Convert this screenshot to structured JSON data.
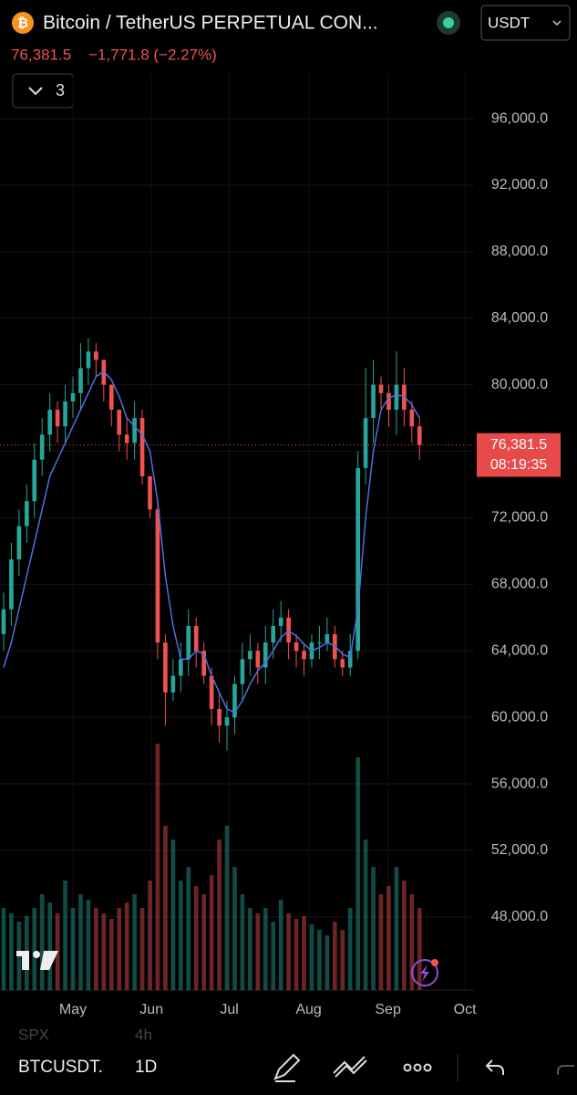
{
  "header": {
    "title": "Bitcoin / TetherUS PERPETUAL CON...",
    "currency": "USDT",
    "price": "76,381.5",
    "change": "−1,771.8 (−2.27%)",
    "indicators": "3"
  },
  "chart_data": {
    "type": "candlestick",
    "open": [
      65000,
      66500,
      69500,
      71500,
      73000,
      75500,
      77000,
      78500,
      77500,
      79000,
      79500,
      81000,
      82000,
      81500,
      80000,
      78500,
      77000,
      76500,
      78000,
      74500,
      72500,
      64500,
      61500,
      62500,
      63500,
      65500,
      64000,
      62500,
      60500,
      59500,
      60000,
      62000,
      63500,
      64000,
      63000,
      64500,
      65500,
      66000,
      64500,
      64000,
      63500,
      64500,
      64500,
      65000,
      63500,
      63000,
      64000,
      75000,
      78000,
      80000,
      79500,
      78500,
      80000,
      78500,
      77500
    ],
    "high": [
      67500,
      70500,
      72500,
      74000,
      76500,
      78000,
      79500,
      79000,
      80000,
      80500,
      82500,
      82800,
      82500,
      81500,
      80000,
      78500,
      78000,
      79000,
      78500,
      74000,
      73000,
      65000,
      63500,
      64500,
      66500,
      66000,
      64500,
      63000,
      61500,
      61000,
      62500,
      64500,
      65000,
      64500,
      65500,
      66500,
      67000,
      66500,
      65000,
      64500,
      65000,
      65500,
      66000,
      65500,
      64000,
      65000,
      76000,
      81000,
      81500,
      80500,
      80000,
      82000,
      81000,
      79000,
      78000
    ],
    "low": [
      64000,
      65500,
      68500,
      70500,
      72000,
      74500,
      76000,
      76500,
      76500,
      78000,
      78500,
      80000,
      80500,
      79000,
      77500,
      76000,
      75500,
      75500,
      74000,
      72000,
      63500,
      59500,
      61000,
      61500,
      62500,
      63000,
      62000,
      59500,
      58500,
      58000,
      59000,
      61000,
      62500,
      62000,
      62000,
      63500,
      64500,
      63500,
      63000,
      62500,
      63000,
      63500,
      64000,
      63000,
      62500,
      62500,
      63500,
      74000,
      76500,
      78500,
      77500,
      77000,
      77500,
      76500,
      75500
    ],
    "close": [
      66500,
      69500,
      71500,
      73000,
      75500,
      77000,
      78500,
      77500,
      79000,
      79500,
      81000,
      82000,
      81500,
      80000,
      78500,
      77000,
      76500,
      78000,
      74500,
      72500,
      64500,
      61500,
      62500,
      63500,
      65500,
      64000,
      62500,
      60500,
      59500,
      60000,
      62000,
      63500,
      64000,
      63000,
      64500,
      65500,
      66000,
      64500,
      64000,
      63500,
      64500,
      64500,
      65000,
      63500,
      63000,
      64000,
      75000,
      78000,
      80000,
      79500,
      78500,
      80000,
      78500,
      77500,
      76381.5
    ],
    "ma": [
      63000,
      64500,
      66500,
      68500,
      70500,
      72500,
      74500,
      75500,
      76500,
      77500,
      78500,
      79500,
      80500,
      80800,
      80300,
      79300,
      78000,
      77500,
      77000,
      76000,
      73000,
      68500,
      65500,
      63500,
      63500,
      64000,
      63800,
      62500,
      61500,
      60500,
      60300,
      61000,
      62000,
      62800,
      63300,
      64000,
      64800,
      65200,
      64900,
      64400,
      64000,
      64200,
      64500,
      64300,
      63800,
      63600,
      66500,
      72000,
      76000,
      78500,
      79200,
      79400,
      79300,
      78800,
      78000
    ],
    "volume": [
      30,
      28,
      25,
      27,
      30,
      35,
      32,
      28,
      40,
      30,
      35,
      33,
      30,
      28,
      26,
      30,
      32,
      35,
      30,
      40,
      90,
      60,
      55,
      40,
      45,
      38,
      35,
      42,
      55,
      60,
      45,
      35,
      30,
      28,
      30,
      25,
      33,
      28,
      26,
      27,
      24,
      22,
      20,
      25,
      22,
      30,
      85,
      55,
      45,
      35,
      38,
      45,
      40,
      35,
      30
    ],
    "up_color": "#26a69a",
    "down_color": "#ef5350",
    "ma_color": "#4f6fe0",
    "ylim": [
      43600,
      98750
    ],
    "yticks": [
      {
        "value": 48000,
        "label": "48,000.0"
      },
      {
        "value": 52000,
        "label": "52,000.0"
      },
      {
        "value": 56000,
        "label": "56,000.0"
      },
      {
        "value": 60000,
        "label": "60,000.0"
      },
      {
        "value": 64000,
        "label": "64,000.0"
      },
      {
        "value": 68000,
        "label": "68,000.0"
      },
      {
        "value": 72000,
        "label": "72,000.0"
      },
      {
        "value": 76000,
        "label": "76,000.0"
      },
      {
        "value": 80000,
        "label": "80,000.0"
      },
      {
        "value": 84000,
        "label": "84,000.0"
      },
      {
        "value": 88000,
        "label": "88,000.0"
      },
      {
        "value": 92000,
        "label": "92,000.0"
      },
      {
        "value": 96000,
        "label": "96,000.0"
      }
    ],
    "xlim": [
      -0.47,
      61.07
    ],
    "xticks": [
      {
        "value": 9,
        "label": "May"
      },
      {
        "value": 19.2,
        "label": "Jun"
      },
      {
        "value": 29.3,
        "label": "Jul"
      },
      {
        "value": 39.6,
        "label": "Aug"
      },
      {
        "value": 49.9,
        "label": "Sep"
      },
      {
        "value": 59.9,
        "label": "Oct"
      }
    ],
    "last_price": {
      "value": 76381.5,
      "label": "76,381.5"
    },
    "countdown": "08:19:35",
    "grid": true
  },
  "toolbar": {
    "symbol": "BTCUSDT.",
    "interval": "1D",
    "ghost_symbol": "SPX",
    "ghost_interval": "4h"
  }
}
